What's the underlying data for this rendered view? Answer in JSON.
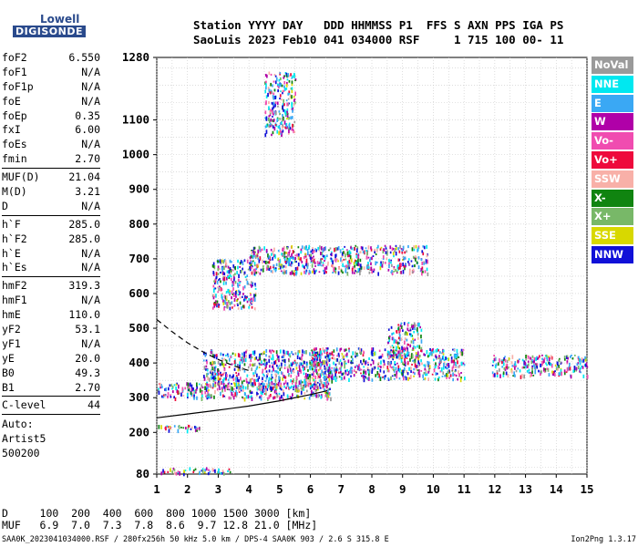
{
  "logo": {
    "line1": "Lowell",
    "line2": "DIGISONDE"
  },
  "header": {
    "line1": "Station YYYY DAY   DDD HHMMSS P1  FFS S AXN PPS IGA PS",
    "line2": "SaoLuis 2023 Feb10 041 034000 RSF     1 715 100 00- 11"
  },
  "params": [
    {
      "label": "foF2",
      "value": "6.550"
    },
    {
      "label": "foF1",
      "value": "N/A"
    },
    {
      "label": "foF1p",
      "value": "N/A"
    },
    {
      "label": "foE",
      "value": "N/A"
    },
    {
      "label": "foEp",
      "value": "0.35"
    },
    {
      "label": "fxI",
      "value": "6.00"
    },
    {
      "label": "foEs",
      "value": "N/A"
    },
    {
      "label": "fmin",
      "value": "2.70"
    },
    {
      "label": "MUF(D)",
      "value": "21.04",
      "sep": true
    },
    {
      "label": "M(D)",
      "value": "3.21"
    },
    {
      "label": "D",
      "value": "N/A"
    },
    {
      "label": "h`F",
      "value": "285.0",
      "sep": true
    },
    {
      "label": "h`F2",
      "value": "285.0"
    },
    {
      "label": "h`E",
      "value": "N/A"
    },
    {
      "label": "h`Es",
      "value": "N/A"
    },
    {
      "label": "hmF2",
      "value": "319.3",
      "sep": true
    },
    {
      "label": "hmF1",
      "value": "N/A"
    },
    {
      "label": "hmE",
      "value": "110.0"
    },
    {
      "label": "yF2",
      "value": "53.1"
    },
    {
      "label": "yF1",
      "value": "N/A"
    },
    {
      "label": "yE",
      "value": "20.0"
    },
    {
      "label": "B0",
      "value": "49.3"
    },
    {
      "label": "B1",
      "value": "2.70"
    },
    {
      "label": "C-level",
      "value": "44",
      "sep": true
    }
  ],
  "auto": {
    "line1": "Auto:",
    "line2": "Artist5",
    "line3": "500200"
  },
  "legend": [
    {
      "label": "NoVal",
      "color": "#9a9a9a"
    },
    {
      "label": "NNE",
      "color": "#00e8f0"
    },
    {
      "label": "E",
      "color": "#3aa8f4"
    },
    {
      "label": "W",
      "color": "#b000a8"
    },
    {
      "label": "Vo-",
      "color": "#f04cb0"
    },
    {
      "label": "Vo+",
      "color": "#ee0a3c"
    },
    {
      "label": "SSW",
      "color": "#f8b0a8"
    },
    {
      "label": "X-",
      "color": "#108410"
    },
    {
      "label": "X+",
      "color": "#78b868"
    },
    {
      "label": "SSE",
      "color": "#d8d800"
    },
    {
      "label": "NNW",
      "color": "#1010d8"
    }
  ],
  "dtable": {
    "line1": "D     100  200  400  600  800 1000 1500 3000 [km]",
    "line2": "MUF   6.9  7.0  7.3  7.8  8.6  9.7 12.8 21.0 [MHz]"
  },
  "footer": {
    "left": "SAA0K_2023041034000.RSF / 280fx256h 50 kHz 5.0 km / DPS-4 SAA0K 903 / 2.6 S 315.8 E",
    "right": "Ion2Png 1.3.17"
  },
  "chart_data": {
    "type": "scatter",
    "title": "",
    "xlabel": "",
    "ylabel": "",
    "xlim": [
      1,
      15
    ],
    "ylim": [
      80,
      1280
    ],
    "x_ticks": [
      1,
      2,
      3,
      4,
      5,
      6,
      7,
      8,
      9,
      10,
      11,
      12,
      13,
      14,
      15
    ],
    "y_ticks": [
      80,
      200,
      300,
      400,
      500,
      600,
      700,
      800,
      900,
      1000,
      1100,
      1280
    ],
    "x_gridlines": [
      1,
      1.5,
      2,
      2.5,
      3,
      3.5,
      4,
      4.5,
      5,
      5.5,
      6,
      6.5,
      7,
      7.5,
      8,
      8.5,
      9,
      9.5,
      10,
      10.5,
      11,
      11.5,
      12,
      12.5,
      13,
      13.5,
      14,
      14.5,
      15
    ],
    "y_gridlines": [
      100,
      150,
      200,
      250,
      300,
      350,
      400,
      450,
      500,
      550,
      600,
      650,
      700,
      750,
      800,
      850,
      900,
      950,
      1000,
      1050,
      1100,
      1150,
      1200,
      1250
    ],
    "grid": true,
    "legend_position": "right",
    "echo_regions": [
      {
        "x": [
          1.0,
          6.7
        ],
        "y": [
          300,
          345
        ]
      },
      {
        "x": [
          2.5,
          6.7
        ],
        "y": [
          330,
          440
        ]
      },
      {
        "x": [
          6.0,
          11.0
        ],
        "y": [
          355,
          445
        ]
      },
      {
        "x": [
          8.5,
          9.6
        ],
        "y": [
          420,
          520
        ]
      },
      {
        "x": [
          11.9,
          15.0
        ],
        "y": [
          365,
          425
        ]
      },
      {
        "x": [
          1.0,
          3.5
        ],
        "y": [
          85,
          100
        ]
      },
      {
        "x": [
          1.0,
          2.4
        ],
        "y": [
          208,
          222
        ]
      },
      {
        "x": [
          2.8,
          4.2
        ],
        "y": [
          560,
          700
        ]
      },
      {
        "x": [
          4.0,
          9.8
        ],
        "y": [
          660,
          740
        ]
      },
      {
        "x": [
          4.5,
          5.5
        ],
        "y": [
          1060,
          1240
        ]
      }
    ],
    "profile_curve": {
      "x": [
        1.0,
        2.0,
        3.0,
        4.0,
        5.0,
        6.0,
        6.55
      ],
      "y": [
        242,
        253,
        264,
        276,
        291,
        309,
        320
      ]
    },
    "dashed_curve": {
      "x": [
        1.0,
        1.5,
        2.0,
        2.5,
        3.0,
        3.5,
        4.0
      ],
      "y": [
        525,
        490,
        458,
        432,
        410,
        392,
        378
      ]
    }
  }
}
